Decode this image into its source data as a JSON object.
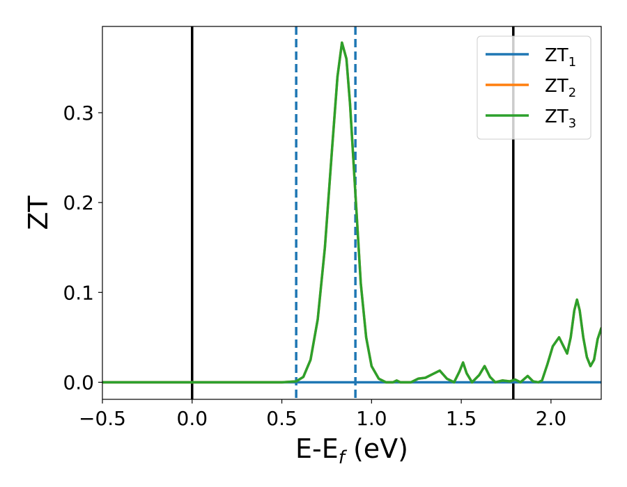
{
  "chart_data": {
    "type": "line",
    "xlabel_main": "E-E",
    "xlabel_sub": "f",
    "xlabel_unit": " (eV)",
    "ylabel": "ZT",
    "xlim": [
      -0.5,
      2.28
    ],
    "ylim": [
      -0.019,
      0.396
    ],
    "x_ticks": [
      -0.5,
      0.0,
      0.5,
      1.0,
      1.5,
      2.0
    ],
    "x_tick_labels": [
      "−0.5",
      "0.0",
      "0.5",
      "1.0",
      "1.5",
      "2.0"
    ],
    "y_ticks": [
      0.0,
      0.1,
      0.2,
      0.3
    ],
    "y_tick_labels": [
      "0.0",
      "0.1",
      "0.2",
      "0.3"
    ],
    "grid": false,
    "legend_position": "top-right",
    "vlines": [
      {
        "x": 0.0,
        "color": "#000000",
        "style": "solid"
      },
      {
        "x": 0.58,
        "color": "#1f77b4",
        "style": "dashed"
      },
      {
        "x": 0.91,
        "color": "#1f77b4",
        "style": "dashed"
      },
      {
        "x": 1.79,
        "color": "#000000",
        "style": "solid"
      }
    ],
    "series": [
      {
        "name": "ZT",
        "sub": "1",
        "color": "#1f77b4",
        "points": [
          [
            -0.5,
            0.0
          ],
          [
            2.28,
            0.0
          ]
        ]
      },
      {
        "name": "ZT",
        "sub": "2",
        "color": "#ff7f0e",
        "points": [
          [
            -0.5,
            0.0
          ],
          [
            0.5,
            0.0
          ],
          [
            0.58,
            0.001
          ],
          [
            0.62,
            0.006
          ],
          [
            0.66,
            0.025
          ],
          [
            0.7,
            0.07
          ],
          [
            0.74,
            0.15
          ],
          [
            0.78,
            0.26
          ],
          [
            0.81,
            0.34
          ],
          [
            0.835,
            0.378
          ],
          [
            0.86,
            0.36
          ],
          [
            0.88,
            0.31
          ],
          [
            0.91,
            0.21
          ],
          [
            0.94,
            0.11
          ],
          [
            0.97,
            0.05
          ],
          [
            1.0,
            0.018
          ],
          [
            1.04,
            0.004
          ],
          [
            1.08,
            0.0
          ],
          [
            1.12,
            0.0
          ],
          [
            1.14,
            0.002
          ],
          [
            1.16,
            0.0
          ],
          [
            1.22,
            0.0
          ],
          [
            1.26,
            0.004
          ],
          [
            1.3,
            0.005
          ],
          [
            1.34,
            0.009
          ],
          [
            1.38,
            0.013
          ],
          [
            1.42,
            0.004
          ],
          [
            1.46,
            0.0
          ],
          [
            1.49,
            0.012
          ],
          [
            1.51,
            0.022
          ],
          [
            1.53,
            0.01
          ],
          [
            1.56,
            0.0
          ],
          [
            1.6,
            0.008
          ],
          [
            1.63,
            0.018
          ],
          [
            1.66,
            0.006
          ],
          [
            1.69,
            0.0
          ],
          [
            1.73,
            0.002
          ],
          [
            1.77,
            0.001
          ],
          [
            1.8,
            0.003
          ],
          [
            1.83,
            0.0
          ],
          [
            1.87,
            0.007
          ],
          [
            1.9,
            0.001
          ],
          [
            1.93,
            0.0
          ],
          [
            1.95,
            0.002
          ],
          [
            1.98,
            0.02
          ],
          [
            2.01,
            0.04
          ],
          [
            2.045,
            0.05
          ],
          [
            2.07,
            0.04
          ],
          [
            2.09,
            0.032
          ],
          [
            2.11,
            0.05
          ],
          [
            2.13,
            0.08
          ],
          [
            2.145,
            0.092
          ],
          [
            2.16,
            0.08
          ],
          [
            2.18,
            0.05
          ],
          [
            2.2,
            0.028
          ],
          [
            2.22,
            0.018
          ],
          [
            2.24,
            0.025
          ],
          [
            2.26,
            0.048
          ],
          [
            2.28,
            0.06
          ]
        ]
      },
      {
        "name": "ZT",
        "sub": "3",
        "color": "#2ca02c",
        "points": [
          [
            -0.5,
            0.0
          ],
          [
            0.5,
            0.0
          ],
          [
            0.58,
            0.001
          ],
          [
            0.62,
            0.006
          ],
          [
            0.66,
            0.025
          ],
          [
            0.7,
            0.07
          ],
          [
            0.74,
            0.15
          ],
          [
            0.78,
            0.26
          ],
          [
            0.81,
            0.34
          ],
          [
            0.835,
            0.378
          ],
          [
            0.86,
            0.36
          ],
          [
            0.88,
            0.31
          ],
          [
            0.91,
            0.21
          ],
          [
            0.94,
            0.11
          ],
          [
            0.97,
            0.05
          ],
          [
            1.0,
            0.018
          ],
          [
            1.04,
            0.004
          ],
          [
            1.08,
            0.0
          ],
          [
            1.12,
            0.0
          ],
          [
            1.14,
            0.002
          ],
          [
            1.16,
            0.0
          ],
          [
            1.22,
            0.0
          ],
          [
            1.26,
            0.004
          ],
          [
            1.3,
            0.005
          ],
          [
            1.34,
            0.009
          ],
          [
            1.38,
            0.013
          ],
          [
            1.42,
            0.004
          ],
          [
            1.46,
            0.0
          ],
          [
            1.49,
            0.012
          ],
          [
            1.51,
            0.022
          ],
          [
            1.53,
            0.01
          ],
          [
            1.56,
            0.0
          ],
          [
            1.6,
            0.008
          ],
          [
            1.63,
            0.018
          ],
          [
            1.66,
            0.006
          ],
          [
            1.69,
            0.0
          ],
          [
            1.73,
            0.002
          ],
          [
            1.77,
            0.001
          ],
          [
            1.8,
            0.003
          ],
          [
            1.83,
            0.0
          ],
          [
            1.87,
            0.007
          ],
          [
            1.9,
            0.001
          ],
          [
            1.93,
            0.0
          ],
          [
            1.95,
            0.002
          ],
          [
            1.98,
            0.02
          ],
          [
            2.01,
            0.04
          ],
          [
            2.045,
            0.05
          ],
          [
            2.07,
            0.04
          ],
          [
            2.09,
            0.032
          ],
          [
            2.11,
            0.05
          ],
          [
            2.13,
            0.08
          ],
          [
            2.145,
            0.092
          ],
          [
            2.16,
            0.08
          ],
          [
            2.18,
            0.05
          ],
          [
            2.2,
            0.028
          ],
          [
            2.22,
            0.018
          ],
          [
            2.24,
            0.025
          ],
          [
            2.26,
            0.048
          ],
          [
            2.28,
            0.06
          ]
        ]
      }
    ]
  }
}
